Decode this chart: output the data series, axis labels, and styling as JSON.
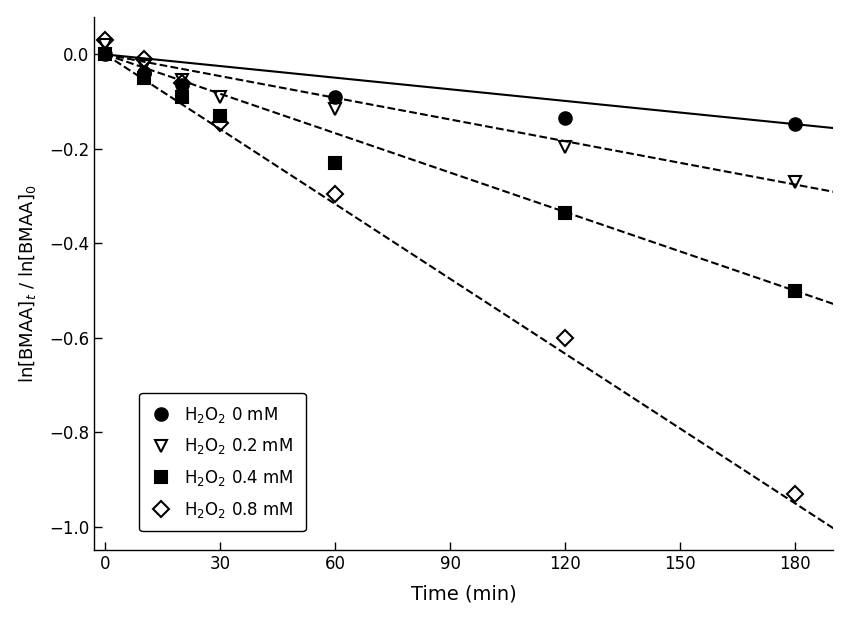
{
  "xlabel": "Time (min)",
  "ylabel": "ln[BMAA]$_\\mathregular{t}$ / ln[BMAA]$_\\mathregular{0}$",
  "xlim": [
    -3,
    190
  ],
  "ylim": [
    -1.05,
    0.08
  ],
  "xticks": [
    0,
    30,
    60,
    90,
    120,
    150,
    180
  ],
  "yticks": [
    0.0,
    -0.2,
    -0.4,
    -0.6,
    -0.8,
    -1.0
  ],
  "series": [
    {
      "label": "H$_2$O$_2$ 0 mM",
      "x": [
        0,
        10,
        10,
        20,
        60,
        120,
        180
      ],
      "y": [
        0.0,
        -0.04,
        -0.04,
        -0.065,
        -0.09,
        -0.135,
        -0.148
      ],
      "marker": "o",
      "fillstyle": "full",
      "color": "black",
      "linestyle": "-",
      "linewidth": 1.5,
      "markersize": 9,
      "slope": -0.00082,
      "intercept": 0.0
    },
    {
      "label": "H$_2$O$_2$ 0.2 mM",
      "x": [
        0,
        10,
        20,
        30,
        60,
        120,
        180
      ],
      "y": [
        0.02,
        -0.025,
        -0.055,
        -0.09,
        -0.115,
        -0.195,
        -0.27
      ],
      "marker": "v",
      "fillstyle": "none",
      "color": "black",
      "linestyle": "--",
      "linewidth": 1.5,
      "markersize": 9,
      "slope": -0.00153,
      "intercept": 0.0
    },
    {
      "label": "H$_2$O$_2$ 0.4 mM",
      "x": [
        0,
        10,
        20,
        30,
        60,
        120,
        180
      ],
      "y": [
        0.0,
        -0.05,
        -0.09,
        -0.13,
        -0.23,
        -0.335,
        -0.5
      ],
      "marker": "s",
      "fillstyle": "full",
      "color": "black",
      "linestyle": "--",
      "linewidth": 1.5,
      "markersize": 9,
      "slope": -0.00278,
      "intercept": 0.0
    },
    {
      "label": "H$_2$O$_2$ 0.8 mM",
      "x": [
        0,
        10,
        20,
        30,
        60,
        120,
        180
      ],
      "y": [
        0.03,
        -0.01,
        -0.06,
        -0.145,
        -0.295,
        -0.6,
        -0.93
      ],
      "marker": "D",
      "fillstyle": "none",
      "color": "black",
      "linestyle": "--",
      "linewidth": 1.5,
      "markersize": 8,
      "slope": -0.00528,
      "intercept": 0.0
    }
  ],
  "background_color": "#ffffff"
}
